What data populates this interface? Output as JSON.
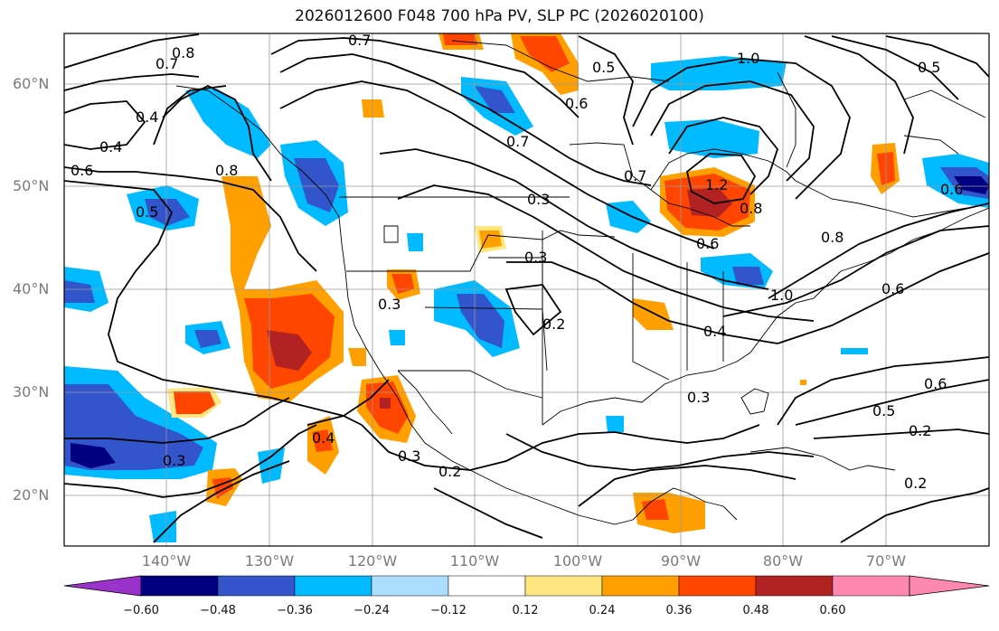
{
  "title": "2026012600 F048 700 hPa PV, SLP PC (2026020100)",
  "lat_labels": [
    "60°N",
    "50°N",
    "40°N",
    "30°N",
    "20°N"
  ],
  "lon_labels": [
    "140°W",
    "130°W",
    "120°W",
    "110°W",
    "100°W",
    "90°W",
    "80°W",
    "70°W"
  ],
  "colorbar": {
    "ticks": [
      "−0.60",
      "−0.48",
      "−0.36",
      "−0.24",
      "−0.12",
      "0.12",
      "0.24",
      "0.36",
      "0.48",
      "0.60"
    ],
    "colors": [
      "#9933cc",
      "#000080",
      "#3355cc",
      "#00bbff",
      "#aaddff",
      "#ffffff",
      "#ffe680",
      "#ffa000",
      "#ff4500",
      "#b22222",
      "#ff88b0"
    ]
  },
  "contour_labels": [
    "0.7",
    "0.8",
    "0.7",
    "0.5",
    "0.4",
    "0.6",
    "0.8",
    "0.7",
    "0.6",
    "0.3",
    "0.4",
    "0.3",
    "0.2",
    "0.5",
    "0.6",
    "0.7",
    "0.3",
    "0.3",
    "0.2",
    "0.4",
    "0.3",
    "1.0",
    "1.2",
    "0.8",
    "0.6",
    "0.8",
    "1.0",
    "0.6",
    "0.4",
    "0.3",
    "0.5",
    "0.6",
    "0.2",
    "0.2",
    "0.5"
  ]
}
